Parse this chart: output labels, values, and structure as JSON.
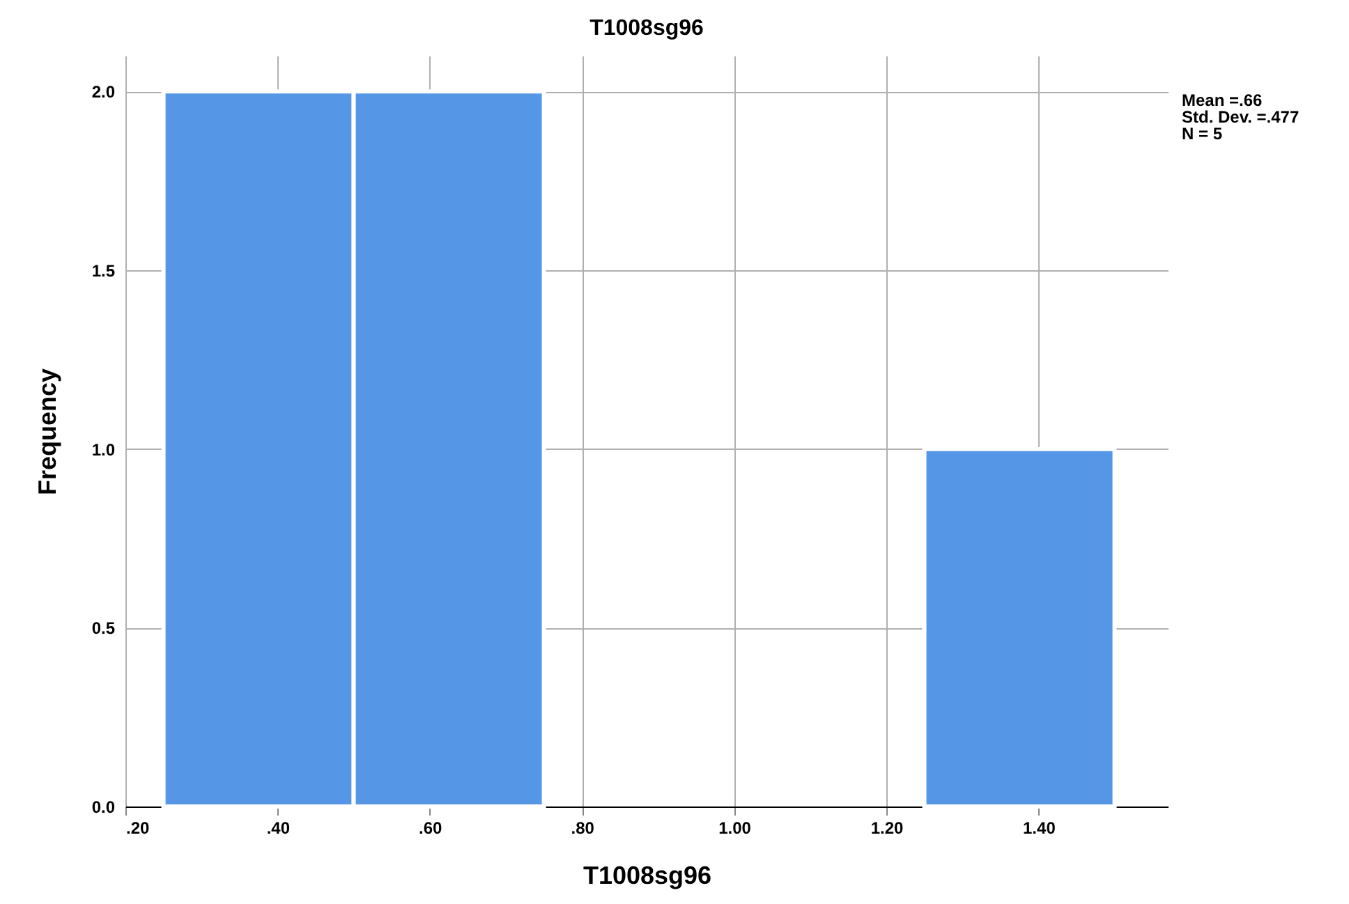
{
  "chart_data": {
    "type": "histogram",
    "title": "T1008sg96",
    "xlabel": "T1008sg96",
    "ylabel": "Frequency",
    "bins": [
      0.25,
      0.5,
      0.75,
      1.0,
      1.25,
      1.5
    ],
    "values": [
      2,
      2,
      0,
      0,
      1
    ],
    "color": "#5596e6",
    "xlim": [
      0.2,
      1.57
    ],
    "xticks": [
      {
        "value": 0.2,
        "label": ".20"
      },
      {
        "value": 0.4,
        "label": ".40"
      },
      {
        "value": 0.6,
        "label": ".60"
      },
      {
        "value": 0.8,
        "label": ".80"
      },
      {
        "value": 1.0,
        "label": "1.00"
      },
      {
        "value": 1.2,
        "label": "1.20"
      },
      {
        "value": 1.4,
        "label": "1.40"
      }
    ],
    "ylim": [
      0,
      2.1
    ],
    "yticks": [
      {
        "value": 0,
        "label": "0.0"
      },
      {
        "value": 0.5,
        "label": "0.5"
      },
      {
        "value": 1,
        "label": "1.0"
      },
      {
        "value": 1.5,
        "label": "1.5"
      },
      {
        "value": 2,
        "label": "2.0"
      }
    ],
    "grid": true,
    "annotations": [
      "Mean =.66",
      "Std. Dev. =.477",
      "N = 5"
    ]
  }
}
